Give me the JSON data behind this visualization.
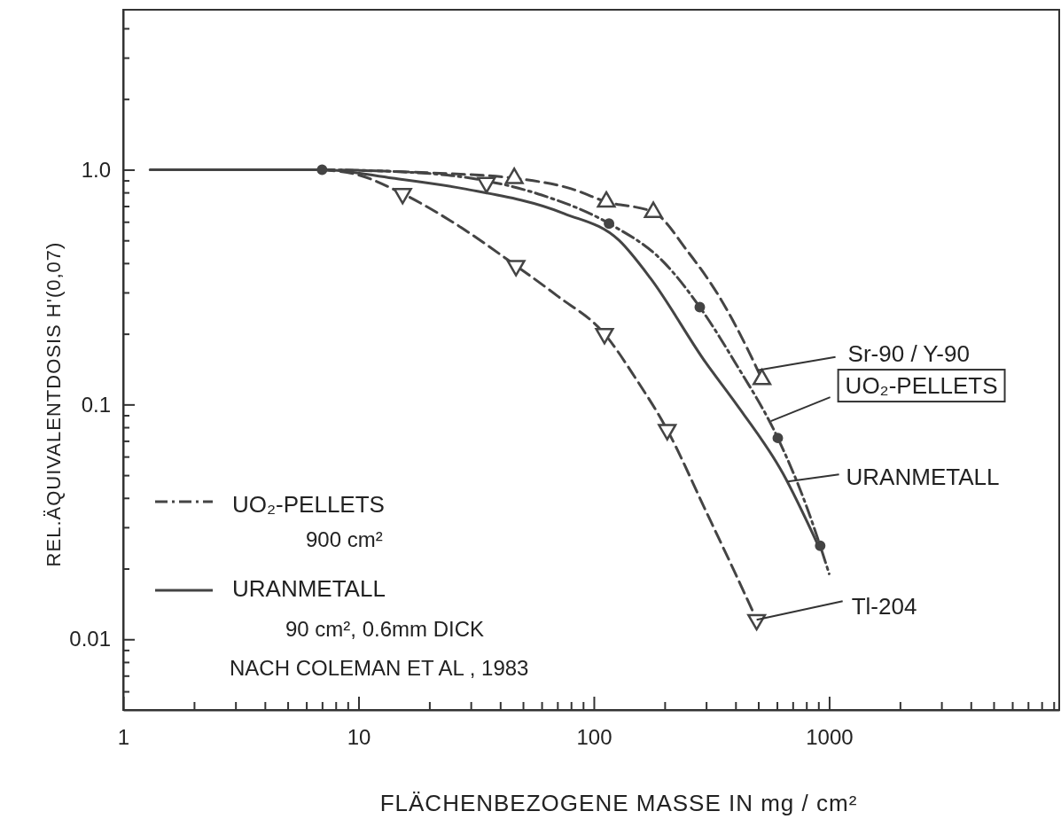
{
  "chart_data": {
    "type": "line",
    "xlabel": "FLÄCHENBEZOGENE MASSE IN mg / cm²",
    "ylabel": "REL.ÄQUIVALENTDOSIS  H'(0,07)",
    "log": "xy",
    "xlim": [
      1,
      9500
    ],
    "ylim": [
      0.005,
      4.8
    ],
    "xticks": [
      1,
      {
        "value": 2,
        "label": null
      },
      {
        "value": 3,
        "label": null
      },
      {
        "value": 4,
        "label": null
      },
      {
        "value": 5,
        "label": null
      },
      {
        "value": 6,
        "label": null
      },
      {
        "value": 7,
        "label": null
      },
      {
        "value": 8,
        "label": null
      },
      {
        "value": 9,
        "label": null
      },
      10,
      {
        "value": 20,
        "label": null
      },
      {
        "value": 30,
        "label": null
      },
      {
        "value": 40,
        "label": null
      },
      {
        "value": 50,
        "label": null
      },
      {
        "value": 60,
        "label": null
      },
      {
        "value": 70,
        "label": null
      },
      {
        "value": 80,
        "label": null
      },
      {
        "value": 90,
        "label": null
      },
      100,
      {
        "value": 200,
        "label": null
      },
      {
        "value": 300,
        "label": null
      },
      {
        "value": 400,
        "label": null
      },
      {
        "value": 500,
        "label": null
      },
      {
        "value": 600,
        "label": null
      },
      {
        "value": 700,
        "label": null
      },
      {
        "value": 800,
        "label": null
      },
      {
        "value": 900,
        "label": null
      },
      1000,
      {
        "value": 2000,
        "label": null
      },
      {
        "value": 3000,
        "label": null
      },
      {
        "value": 4000,
        "label": null
      },
      {
        "value": 5000,
        "label": null
      },
      {
        "value": 6000,
        "label": null
      },
      {
        "value": 7000,
        "label": null
      },
      {
        "value": 8000,
        "label": null
      },
      {
        "value": 9000,
        "label": null
      }
    ],
    "yticks": [
      {
        "value": 0.006,
        "label": null
      },
      {
        "value": 0.007,
        "label": null
      },
      {
        "value": 0.008,
        "label": null
      },
      {
        "value": 0.009,
        "label": null
      },
      0.01,
      {
        "value": 0.02,
        "label": null
      },
      {
        "value": 0.03,
        "label": null
      },
      {
        "value": 0.04,
        "label": null
      },
      {
        "value": 0.05,
        "label": null
      },
      {
        "value": 0.06,
        "label": null
      },
      {
        "value": 0.07,
        "label": null
      },
      {
        "value": 0.08,
        "label": null
      },
      {
        "value": 0.09,
        "label": null
      },
      0.1,
      {
        "value": 0.2,
        "label": null
      },
      {
        "value": 0.3,
        "label": null
      },
      {
        "value": 0.4,
        "label": null
      },
      {
        "value": 0.5,
        "label": null
      },
      {
        "value": 0.6,
        "label": null
      },
      {
        "value": 0.7,
        "label": null
      },
      {
        "value": 0.8,
        "label": null
      },
      {
        "value": 0.9,
        "label": null
      },
      {
        "value": 1,
        "label": "1.0"
      },
      {
        "value": 2,
        "label": null
      },
      {
        "value": 3,
        "label": null
      },
      {
        "value": 4,
        "label": null
      }
    ],
    "grid": false,
    "legend": "bottom left",
    "series": [
      {
        "line_style": "dashed",
        "color": "#444444",
        "x": [
          7,
          20,
          45.9,
          80,
          113,
          179,
          250,
          347,
          453,
          518
        ],
        "values": [
          1.0,
          0.97,
          0.92,
          0.83,
          0.73,
          0.66,
          0.45,
          0.28,
          0.17,
          0.128
        ]
      },
      {
        "type": "scatter",
        "marker": "triangle",
        "color": "#444444",
        "x": [
          45.9,
          113,
          179,
          518
        ],
        "values": [
          0.92,
          0.73,
          0.66,
          0.128
        ]
      },
      {
        "name": "UO₂-PELLETS",
        "line_style": "dashdot",
        "color": "#444444",
        "x": [
          7,
          15,
          30,
          60,
          116,
          200,
          282,
          400,
          605,
          800,
          916,
          1000
        ],
        "values": [
          1.0,
          0.98,
          0.92,
          0.78,
          0.59,
          0.4,
          0.26,
          0.15,
          0.072,
          0.037,
          0.025,
          0.019
        ]
      },
      {
        "type": "scatter",
        "marker": "circle",
        "color": "#444444",
        "x": [
          7,
          116,
          282,
          605,
          916
        ],
        "values": [
          1.0,
          0.59,
          0.26,
          0.072,
          0.025
        ]
      },
      {
        "name": "URANMETALL",
        "line_style": "solid",
        "color": "#444444",
        "x": [
          1.3,
          7,
          14,
          28,
          75,
          128,
          174,
          300,
          390,
          635,
          900
        ],
        "values": [
          1.0,
          1.0,
          0.92,
          0.83,
          0.65,
          0.5,
          0.345,
          0.15,
          0.105,
          0.051,
          0.025
        ]
      },
      {
        "line_style": "dashed",
        "color": "#444444",
        "x": [
          7,
          10,
          15.4,
          25,
          46.7,
          70,
          111,
          150,
          205,
          300,
          400,
          492
        ],
        "values": [
          1.0,
          0.95,
          0.79,
          0.6,
          0.39,
          0.29,
          0.2,
          0.13,
          0.078,
          0.035,
          0.019,
          0.0121
        ]
      },
      {
        "type": "scatter",
        "marker": "triangle_down",
        "color": "#444444",
        "x": [
          15.4,
          35,
          46.7,
          111,
          205,
          492
        ],
        "values": [
          0.79,
          0.88,
          0.39,
          0.2,
          0.078,
          0.0121
        ]
      }
    ],
    "annotations": [
      {
        "text": "Sr-90 / Y-90",
        "x": 496,
        "y": 0.14
      },
      {
        "text": "UO₂-PELLETS",
        "x": 565,
        "y": 0.085
      },
      {
        "text": "URANMETALL",
        "x": 666,
        "y": 0.047
      },
      {
        "text": "Tl-204",
        "x": 492,
        "y": 0.0121
      },
      "900 cm²",
      "90 cm², 0.6mm DICK",
      "NACH COLEMAN ET AL , 1983"
    ]
  }
}
